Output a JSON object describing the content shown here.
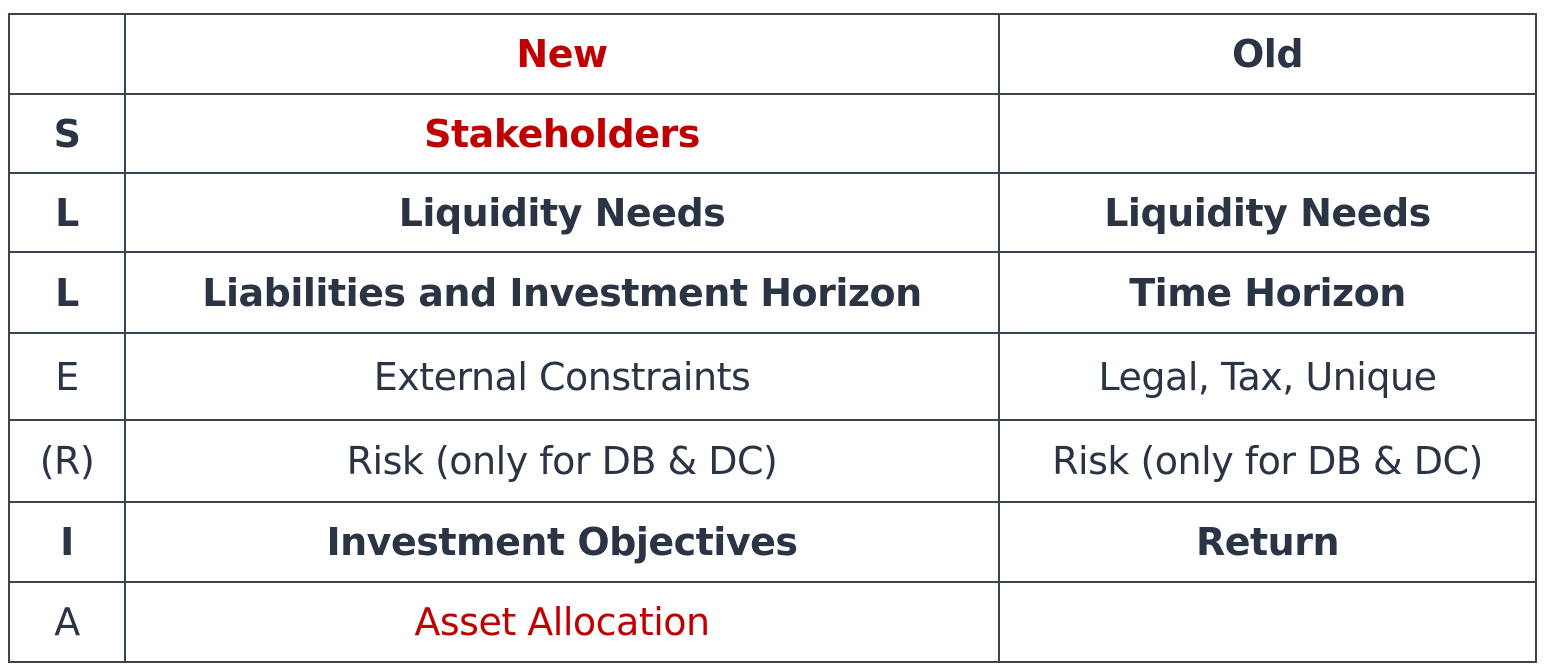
{
  "header": {
    "corner": "",
    "new": "New",
    "old": "Old"
  },
  "rows": [
    {
      "key": "S",
      "new": "Stakeholders",
      "old": ""
    },
    {
      "key": "L",
      "new": "Liquidity Needs",
      "old": "Liquidity Needs"
    },
    {
      "key": "L",
      "new": "Liabilities and Investment Horizon",
      "old": "Time Horizon"
    },
    {
      "key": "E",
      "new": "External Constraints",
      "old": "Legal, Tax, Unique"
    },
    {
      "key": "(R)",
      "new": "Risk (only for DB & DC)",
      "old": "Risk (only for DB & DC)"
    },
    {
      "key": "I",
      "new": "Investment Objectives",
      "old": "Return"
    },
    {
      "key": "A",
      "new": "Asset Allocation",
      "old": ""
    }
  ],
  "colors": {
    "text": "#2b3445",
    "highlight": "#c00000",
    "border": "#3a4453"
  }
}
